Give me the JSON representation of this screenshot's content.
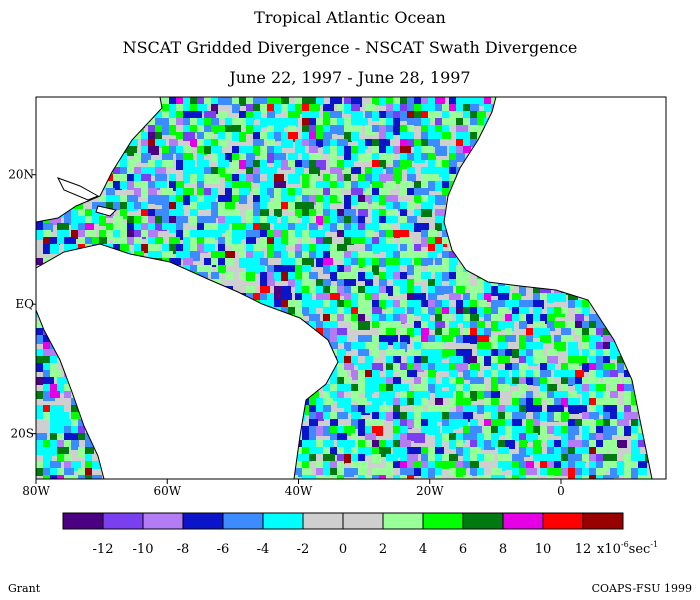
{
  "titles": {
    "line1": "Tropical Atlantic Ocean",
    "line2": "NSCAT Gridded Divergence - NSCAT Swath Divergence",
    "line3": "June 22, 1997 - June 28, 1997"
  },
  "axes": {
    "x_ticks": [
      {
        "value": -80,
        "label": "80W"
      },
      {
        "value": -60,
        "label": "60W"
      },
      {
        "value": -40,
        "label": "40W"
      },
      {
        "value": -20,
        "label": "20W"
      },
      {
        "value": 0,
        "label": "0"
      }
    ],
    "y_ticks": [
      {
        "value": 20,
        "label": "20N"
      },
      {
        "value": 0,
        "label": "EQ"
      },
      {
        "value": -20,
        "label": "20S"
      }
    ],
    "lon_range": [
      -80,
      16
    ],
    "lat_range": [
      -27,
      32
    ]
  },
  "colorbar": {
    "colors": [
      "#4b0082",
      "#7b3ff2",
      "#b37cf5",
      "#0a14c8",
      "#3c8cff",
      "#00ffff",
      "#cfcfcf",
      "#cfcfcf",
      "#99ff99",
      "#00ff00",
      "#007a10",
      "#e600e6",
      "#ff0000",
      "#990000"
    ],
    "labels": [
      "-12",
      "-10",
      "-8",
      "-6",
      "-4",
      "-2",
      "0",
      "2",
      "4",
      "6",
      "8",
      "10",
      "12"
    ],
    "units": "x10",
    "units_exp": "-6",
    "units_suffix": "sec",
    "units_suffix_exp": "-1"
  },
  "footer": {
    "left": "Grant",
    "right": "COAPS-FSU 1999"
  }
}
